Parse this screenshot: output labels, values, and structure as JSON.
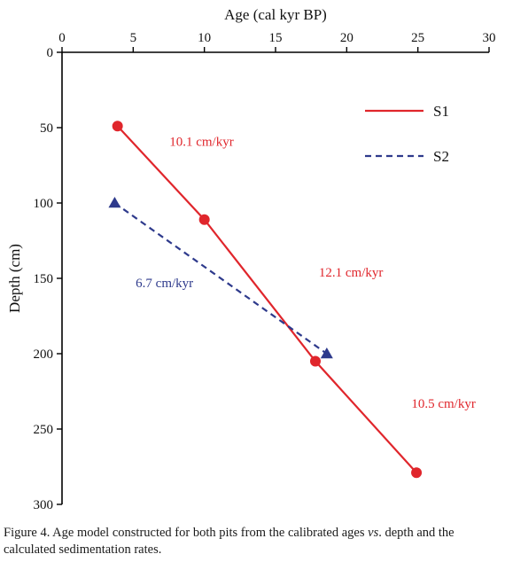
{
  "figure": {
    "caption_part1": "Figure 4. Age model constructed for both pits from the calibrated ages ",
    "caption_vs": "vs",
    "caption_part2": ". depth and the calculated sedimentation rates."
  },
  "chart_data": {
    "type": "line",
    "xlabel": "Age (cal kyr BP)",
    "ylabel": "Depth (cm)",
    "xlim": [
      0,
      30
    ],
    "ylim": [
      0,
      300
    ],
    "y_inverted": true,
    "x_axis_position": "top",
    "xticks": [
      0,
      5,
      10,
      15,
      20,
      25,
      30
    ],
    "yticks": [
      0,
      50,
      100,
      150,
      200,
      250,
      300
    ],
    "grid": false,
    "legend_position": "top-right",
    "series": [
      {
        "name": "S1",
        "color": "#e0262c",
        "line_style": "solid",
        "marker": "circle",
        "points": [
          {
            "x": 3.9,
            "y": 49
          },
          {
            "x": 10.0,
            "y": 111
          },
          {
            "x": 17.8,
            "y": 205
          },
          {
            "x": 24.9,
            "y": 279
          }
        ]
      },
      {
        "name": "S2",
        "color": "#2e3a8c",
        "line_style": "dashed",
        "marker": "triangle",
        "points": [
          {
            "x": 3.7,
            "y": 100
          },
          {
            "x": 18.6,
            "y": 200
          }
        ]
      }
    ],
    "annotations": [
      {
        "text": "10.1 cm/kyr",
        "x": 9.8,
        "y": 59,
        "color": "#e0262c"
      },
      {
        "text": "12.1 cm/kyr",
        "x": 20.3,
        "y": 146,
        "color": "#e0262c"
      },
      {
        "text": "10.5 cm/kyr",
        "x": 26.8,
        "y": 233,
        "color": "#e0262c"
      },
      {
        "text": "6.7 cm/kyr",
        "x": 7.2,
        "y": 153,
        "color": "#2e3a8c"
      }
    ]
  }
}
